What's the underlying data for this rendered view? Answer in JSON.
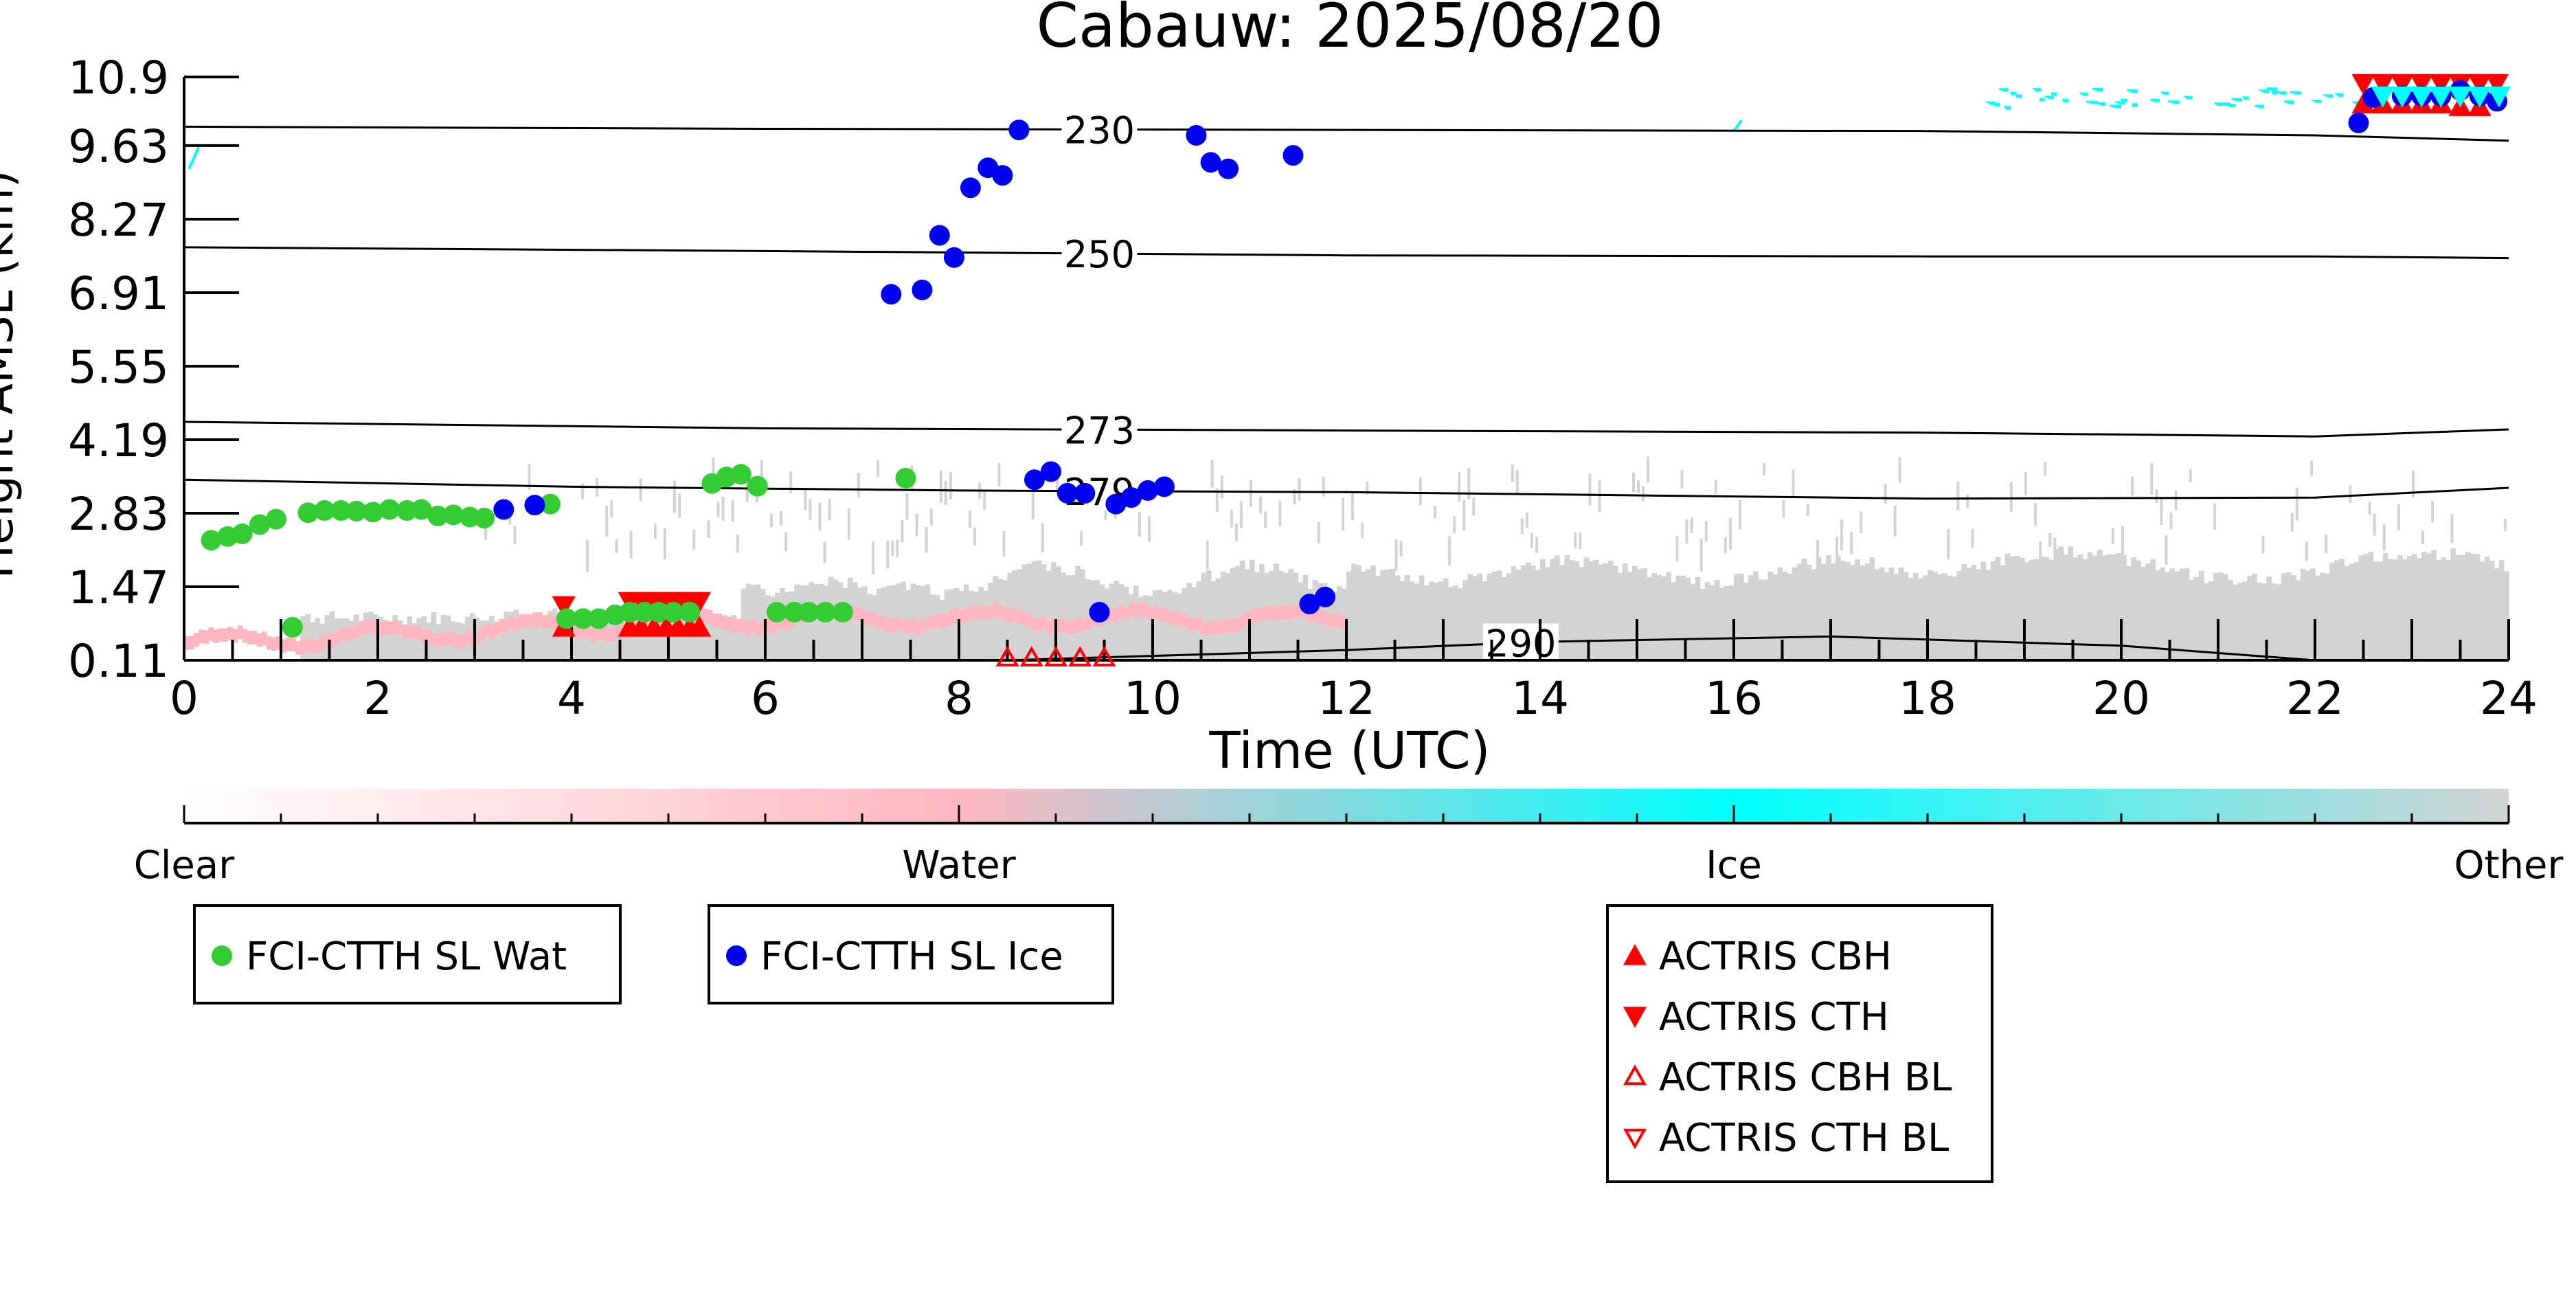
{
  "chart_data": {
    "type": "scatter",
    "title": "Cabauw: 2025/08/20",
    "xlabel": "Time (UTC)",
    "ylabel": "Height AMSL (km)",
    "xlim": [
      0,
      24
    ],
    "ylim": [
      0.11,
      10.9
    ],
    "x_ticks": [
      "0",
      "2",
      "4",
      "6",
      "8",
      "10",
      "12",
      "14",
      "16",
      "18",
      "20",
      "22",
      "24"
    ],
    "y_ticks": [
      "0.11",
      "1.47",
      "2.83",
      "4.19",
      "5.55",
      "6.91",
      "8.27",
      "9.63",
      "10.9"
    ],
    "grid": false,
    "series": [
      {
        "name": "FCI-CTTH SL Wat",
        "color": "#33cc33",
        "marker": "circle",
        "points": [
          [
            0.28,
            2.33
          ],
          [
            0.45,
            2.4
          ],
          [
            0.6,
            2.45
          ],
          [
            0.78,
            2.62
          ],
          [
            0.95,
            2.72
          ],
          [
            1.12,
            0.72
          ],
          [
            1.28,
            2.84
          ],
          [
            1.45,
            2.88
          ],
          [
            1.62,
            2.88
          ],
          [
            1.78,
            2.87
          ],
          [
            1.95,
            2.85
          ],
          [
            2.12,
            2.9
          ],
          [
            2.3,
            2.88
          ],
          [
            2.45,
            2.9
          ],
          [
            2.62,
            2.78
          ],
          [
            2.78,
            2.8
          ],
          [
            2.95,
            2.76
          ],
          [
            3.1,
            2.74
          ],
          [
            3.78,
            3.0
          ],
          [
            3.95,
            0.88
          ],
          [
            4.12,
            0.88
          ],
          [
            4.28,
            0.88
          ],
          [
            4.45,
            0.95
          ],
          [
            4.6,
            1.0
          ],
          [
            4.75,
            1.0
          ],
          [
            4.9,
            1.0
          ],
          [
            5.05,
            1.0
          ],
          [
            5.22,
            1.0
          ],
          [
            5.45,
            3.38
          ],
          [
            5.6,
            3.5
          ],
          [
            5.75,
            3.55
          ],
          [
            5.92,
            3.33
          ],
          [
            6.12,
            1.0
          ],
          [
            6.3,
            1.0
          ],
          [
            6.45,
            1.0
          ],
          [
            6.62,
            1.0
          ],
          [
            6.8,
            1.0
          ],
          [
            7.45,
            3.48
          ]
        ]
      },
      {
        "name": "FCI-CTTH SL Ice",
        "color": "#0000ee",
        "marker": "circle",
        "points": [
          [
            3.3,
            2.9
          ],
          [
            3.62,
            2.98
          ],
          [
            7.3,
            6.88
          ],
          [
            7.62,
            6.96
          ],
          [
            7.8,
            7.97
          ],
          [
            7.95,
            7.56
          ],
          [
            8.12,
            8.85
          ],
          [
            8.3,
            9.22
          ],
          [
            8.45,
            9.08
          ],
          [
            8.62,
            9.92
          ],
          [
            8.78,
            3.45
          ],
          [
            8.95,
            3.6
          ],
          [
            9.12,
            3.2
          ],
          [
            9.3,
            3.2
          ],
          [
            9.45,
            1.0
          ],
          [
            9.62,
            3.0
          ],
          [
            9.78,
            3.12
          ],
          [
            9.95,
            3.25
          ],
          [
            10.12,
            3.32
          ],
          [
            10.45,
            9.82
          ],
          [
            10.6,
            9.32
          ],
          [
            10.78,
            9.2
          ],
          [
            11.45,
            9.45
          ],
          [
            11.62,
            1.15
          ],
          [
            11.78,
            1.28
          ],
          [
            22.45,
            10.05
          ],
          [
            22.6,
            10.52
          ],
          [
            22.9,
            10.55
          ],
          [
            23.1,
            10.55
          ],
          [
            23.3,
            10.55
          ],
          [
            23.5,
            10.65
          ],
          [
            23.7,
            10.55
          ],
          [
            23.88,
            10.45
          ]
        ]
      },
      {
        "name": "ACTRIS CBH",
        "color": "#ff0000",
        "marker": "triangle-up",
        "points": [
          [
            3.92,
            0.72
          ],
          [
            4.6,
            0.72
          ],
          [
            4.72,
            0.72
          ],
          [
            4.85,
            0.72
          ],
          [
            4.98,
            0.72
          ],
          [
            5.1,
            0.72
          ],
          [
            5.22,
            0.72
          ],
          [
            5.32,
            0.72
          ],
          [
            22.5,
            10.4
          ],
          [
            22.7,
            10.4
          ],
          [
            22.9,
            10.4
          ],
          [
            23.1,
            10.4
          ],
          [
            23.3,
            10.4
          ],
          [
            23.5,
            10.35
          ],
          [
            23.7,
            10.35
          ]
        ]
      },
      {
        "name": "ACTRIS CTH",
        "color": "#ff0000",
        "marker": "triangle-down",
        "points": [
          [
            3.92,
            1.12
          ],
          [
            4.6,
            1.2
          ],
          [
            4.72,
            1.2
          ],
          [
            4.85,
            1.2
          ],
          [
            4.98,
            1.2
          ],
          [
            5.1,
            1.2
          ],
          [
            5.22,
            1.2
          ],
          [
            5.32,
            1.2
          ],
          [
            22.5,
            10.78
          ],
          [
            22.7,
            10.78
          ],
          [
            22.9,
            10.78
          ],
          [
            23.1,
            10.78
          ],
          [
            23.3,
            10.78
          ],
          [
            23.5,
            10.78
          ],
          [
            23.7,
            10.78
          ],
          [
            23.88,
            10.78
          ]
        ]
      },
      {
        "name": "ACTRIS CBH BL",
        "color": "#ff0000",
        "marker": "triangle-up-open",
        "points": [
          [
            8.5,
            0.15
          ],
          [
            8.75,
            0.15
          ],
          [
            9.0,
            0.15
          ],
          [
            9.25,
            0.15
          ],
          [
            9.5,
            0.15
          ]
        ]
      },
      {
        "name": "ACTRIS CTH BL",
        "color": "#ff0000",
        "marker": "triangle-down-open",
        "points": []
      }
    ],
    "isotherms": [
      {
        "label": "230",
        "label_x": 9.45,
        "points": [
          [
            0,
            9.98
          ],
          [
            6,
            9.94
          ],
          [
            12,
            9.92
          ],
          [
            18,
            9.9
          ],
          [
            22,
            9.82
          ],
          [
            24,
            9.72
          ]
        ]
      },
      {
        "label": "250",
        "label_x": 9.45,
        "points": [
          [
            0,
            7.75
          ],
          [
            6,
            7.68
          ],
          [
            12,
            7.6
          ],
          [
            18,
            7.58
          ],
          [
            22,
            7.58
          ],
          [
            24,
            7.55
          ]
        ]
      },
      {
        "label": "273",
        "label_x": 9.45,
        "points": [
          [
            0,
            4.52
          ],
          [
            6,
            4.4
          ],
          [
            12,
            4.36
          ],
          [
            18,
            4.32
          ],
          [
            22,
            4.25
          ],
          [
            24,
            4.38
          ]
        ]
      },
      {
        "label": "279",
        "label_x": 9.45,
        "points": [
          [
            0,
            3.45
          ],
          [
            4,
            3.32
          ],
          [
            8,
            3.25
          ],
          [
            12,
            3.22
          ],
          [
            18,
            3.1
          ],
          [
            22,
            3.12
          ],
          [
            24,
            3.3
          ]
        ]
      },
      {
        "label": "290",
        "label_x": 13.8,
        "points": [
          [
            8.5,
            0.11
          ],
          [
            12,
            0.3
          ],
          [
            14,
            0.45
          ],
          [
            17,
            0.55
          ],
          [
            20,
            0.38
          ],
          [
            22,
            0.11
          ]
        ]
      }
    ],
    "colorbar": {
      "ticks": [
        "Clear",
        "Water",
        "Ice",
        "Other"
      ],
      "colors": {
        "clear": "#ffffff",
        "water": "#ffb6c1",
        "ice": "#00ffff",
        "other": "#d3d3d3"
      }
    },
    "background_colors": {
      "clear": "#ffffff",
      "water": "#ffb6c1",
      "ice": "#00ffff",
      "other": "#d3d3d3"
    }
  }
}
